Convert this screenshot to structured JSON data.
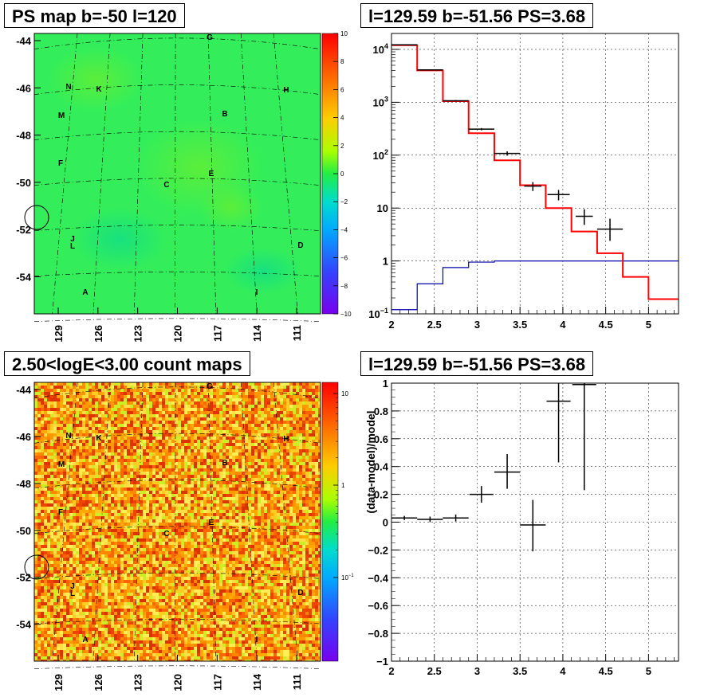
{
  "panels": {
    "ps_map": {
      "title": "PS map b=-50 l=120"
    },
    "spectrum": {
      "title": "l=129.59 b=-51.56 PS=3.68"
    },
    "count_map": {
      "title": "2.50<logE<3.00 count maps"
    },
    "residual": {
      "title": "l=129.59 b=-51.56 PS=3.68"
    }
  },
  "colors": {
    "ps_map_fill": "#33ee5a",
    "count_map_fill": "#f0a020",
    "data_marker": "#000000",
    "model_line": "#ff0000",
    "background_line": "#0000aa"
  },
  "chart_data": [
    {
      "type": "heatmap",
      "title": "PS map b=-50 l=120",
      "x_tick_labels": [
        "129",
        "126",
        "123",
        "120",
        "117",
        "114",
        "111"
      ],
      "y_tick_labels": [
        "-44",
        "-46",
        "-48",
        "-50",
        "-52",
        "-54"
      ],
      "colorbar_ticks": [
        "10",
        "8",
        "6",
        "4",
        "2",
        "0",
        "-2",
        "-4",
        "-6",
        "-8",
        "-10"
      ],
      "colorbar_range": [
        -10,
        10
      ],
      "source_labels": [
        "G",
        "N",
        "K",
        "H",
        "M",
        "B",
        "F",
        "E",
        "C",
        "J",
        "L",
        "D",
        "A",
        "I"
      ],
      "circled_source": {
        "l": 129.59,
        "b": -51.56
      }
    },
    {
      "type": "line",
      "title": "l=129.59 b=-51.56 PS=3.68",
      "xlim": [
        2,
        5.35
      ],
      "ylim_log": [
        0.1,
        20000
      ],
      "y_scale": "log",
      "x_tick_labels": [
        "2",
        "2.5",
        "3",
        "3.5",
        "4",
        "4.5",
        "5"
      ],
      "y_tick_labels": [
        "10^-1",
        "1",
        "10",
        "10^2",
        "10^3",
        "10^4"
      ],
      "grid": true,
      "model_steps": [
        {
          "x0": 2.0,
          "x1": 2.3,
          "y": 12000
        },
        {
          "x0": 2.3,
          "x1": 2.6,
          "y": 4000
        },
        {
          "x0": 2.6,
          "x1": 2.9,
          "y": 1050
        },
        {
          "x0": 2.9,
          "x1": 3.2,
          "y": 260
        },
        {
          "x0": 3.2,
          "x1": 3.5,
          "y": 80
        },
        {
          "x0": 3.5,
          "x1": 3.8,
          "y": 27
        },
        {
          "x0": 3.8,
          "x1": 4.1,
          "y": 10
        },
        {
          "x0": 4.1,
          "x1": 4.4,
          "y": 3.6
        },
        {
          "x0": 4.4,
          "x1": 4.7,
          "y": 1.4
        },
        {
          "x0": 4.7,
          "x1": 5.0,
          "y": 0.5
        },
        {
          "x0": 5.0,
          "x1": 5.35,
          "y": 0.19
        }
      ],
      "background_steps": [
        {
          "x0": 2.0,
          "x1": 2.3,
          "y": 0.12
        },
        {
          "x0": 2.3,
          "x1": 2.6,
          "y": 0.37
        },
        {
          "x0": 2.6,
          "x1": 2.9,
          "y": 0.75
        },
        {
          "x0": 2.9,
          "x1": 3.2,
          "y": 0.95
        },
        {
          "x0": 3.2,
          "x1": 5.35,
          "y": 1.0
        }
      ],
      "data_points": [
        {
          "x": 2.15,
          "y": 12200,
          "xerr": 0.15,
          "ylo": 12000,
          "yhi": 12400
        },
        {
          "x": 2.45,
          "y": 4100,
          "xerr": 0.15,
          "ylo": 4000,
          "yhi": 4200
        },
        {
          "x": 2.75,
          "y": 1070,
          "xerr": 0.15,
          "ylo": 1040,
          "yhi": 1100
        },
        {
          "x": 3.05,
          "y": 310,
          "xerr": 0.15,
          "ylo": 295,
          "yhi": 325
        },
        {
          "x": 3.35,
          "y": 108,
          "xerr": 0.15,
          "ylo": 98,
          "yhi": 118
        },
        {
          "x": 3.65,
          "y": 26,
          "xerr": 0.1,
          "ylo": 21,
          "yhi": 31
        },
        {
          "x": 3.95,
          "y": 18,
          "xerr": 0.13,
          "ylo": 14,
          "yhi": 22
        },
        {
          "x": 4.25,
          "y": 7,
          "xerr": 0.1,
          "ylo": 4.8,
          "yhi": 9.5
        },
        {
          "x": 4.55,
          "y": 4,
          "xerr": 0.15,
          "ylo": 2.4,
          "yhi": 6.3
        }
      ]
    },
    {
      "type": "heatmap",
      "title": "2.50<logE<3.00 count maps",
      "x_tick_labels": [
        "129",
        "126",
        "123",
        "120",
        "117",
        "114",
        "111"
      ],
      "y_tick_labels": [
        "-44",
        "-46",
        "-48",
        "-50",
        "-52",
        "-54"
      ],
      "colorbar_ticks": [
        "10",
        "1",
        "10^-1"
      ],
      "colorbar_scale": "log",
      "source_labels": [
        "G",
        "N",
        "K",
        "H",
        "M",
        "B",
        "F",
        "E",
        "C",
        "J",
        "L",
        "D",
        "A",
        "I"
      ]
    },
    {
      "type": "scatter",
      "title": "l=129.59 b=-51.56 PS=3.68",
      "xlim": [
        2,
        5.35
      ],
      "ylim": [
        -1,
        1
      ],
      "ylabel": "(data-model)/model",
      "x_tick_labels": [
        "2",
        "2.5",
        "3",
        "3.5",
        "4",
        "4.5",
        "5"
      ],
      "y_tick_labels": [
        "1",
        "0.8",
        "0.6",
        "0.4",
        "0.2",
        "0",
        "-0.2",
        "-0.4",
        "-0.6",
        "-0.8",
        "-1"
      ],
      "grid": true,
      "data_points": [
        {
          "x": 2.15,
          "y": 0.03,
          "xerr": 0.15,
          "ylo": 0.015,
          "yhi": 0.045
        },
        {
          "x": 2.45,
          "y": 0.02,
          "xerr": 0.15,
          "ylo": 0.0,
          "yhi": 0.04
        },
        {
          "x": 2.75,
          "y": 0.03,
          "xerr": 0.15,
          "ylo": 0.005,
          "yhi": 0.055
        },
        {
          "x": 3.05,
          "y": 0.2,
          "xerr": 0.14,
          "ylo": 0.14,
          "yhi": 0.26
        },
        {
          "x": 3.35,
          "y": 0.36,
          "xerr": 0.15,
          "ylo": 0.24,
          "yhi": 0.49
        },
        {
          "x": 3.65,
          "y": -0.02,
          "xerr": 0.15,
          "ylo": -0.21,
          "yhi": 0.16
        },
        {
          "x": 3.95,
          "y": 0.87,
          "xerr": 0.14,
          "ylo": 0.43,
          "yhi": 1.0
        },
        {
          "x": 4.25,
          "y": 0.99,
          "xerr": 0.14,
          "ylo": 0.23,
          "yhi": 1.0
        }
      ]
    }
  ]
}
